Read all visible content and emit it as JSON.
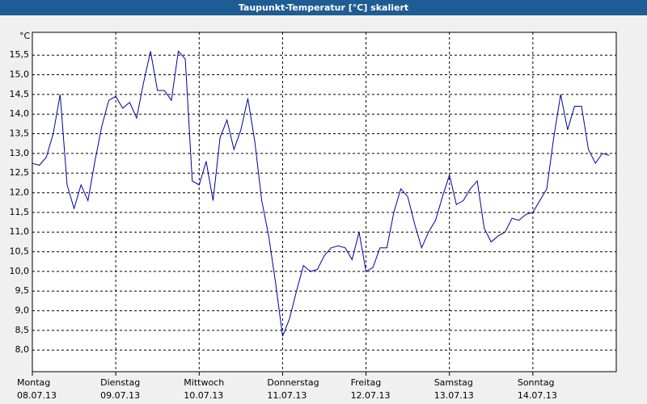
{
  "chart_data": {
    "type": "line",
    "title": "Taupunkt-Temperatur [°C] skaliert",
    "y_unit": "°C",
    "x_labels": [
      {
        "day": "Montag",
        "date": "08.07.13"
      },
      {
        "day": "Dienstag",
        "date": "09.07.13"
      },
      {
        "day": "Mittwoch",
        "date": "10.07.13"
      },
      {
        "day": "Donnerstag",
        "date": "11.07.13"
      },
      {
        "day": "Freitag",
        "date": "12.07.13"
      },
      {
        "day": "Samstag",
        "date": "13.07.13"
      },
      {
        "day": "Sonntag",
        "date": "14.07.13"
      }
    ],
    "series": [
      {
        "color": "#0000a0",
        "values": [
          12.75,
          12.7,
          12.9,
          13.5,
          14.5,
          12.2,
          11.6,
          12.2,
          11.8,
          12.8,
          13.7,
          14.35,
          14.45,
          14.15,
          14.3,
          13.9,
          14.8,
          15.6,
          14.6,
          14.6,
          14.35,
          15.6,
          15.4,
          12.3,
          12.2,
          12.8,
          11.8,
          13.4,
          13.85,
          13.1,
          13.6,
          14.4,
          13.3,
          11.8,
          10.9,
          9.7,
          8.35,
          8.8,
          9.5,
          10.15,
          10.0,
          10.05,
          10.4,
          10.6,
          10.65,
          10.6,
          10.3,
          11.0,
          10.0,
          10.1,
          10.6,
          10.6,
          11.5,
          12.1,
          11.9,
          11.2,
          10.6,
          11.0,
          11.3,
          11.9,
          12.45,
          11.7,
          11.8,
          12.1,
          12.3,
          11.1,
          10.75,
          10.9,
          11.0,
          11.35,
          11.3,
          11.45,
          11.5,
          11.8,
          12.1,
          13.4,
          14.5,
          13.6,
          14.2,
          14.2,
          13.1,
          12.75,
          13.0,
          12.95
        ]
      }
    ],
    "ylim": [
      7.45,
      16.08
    ],
    "yticks": [
      {
        "value": 8.0,
        "label": "8,0"
      },
      {
        "value": 8.5,
        "label": "8,5"
      },
      {
        "value": 9.0,
        "label": "9,0"
      },
      {
        "value": 9.5,
        "label": "9,5"
      },
      {
        "value": 10.0,
        "label": "10,0"
      },
      {
        "value": 10.5,
        "label": "10,5"
      },
      {
        "value": 11.0,
        "label": "11,0"
      },
      {
        "value": 11.5,
        "label": "11,5"
      },
      {
        "value": 12.0,
        "label": "12,0"
      },
      {
        "value": 12.5,
        "label": "12,5"
      },
      {
        "value": 13.0,
        "label": "13,0"
      },
      {
        "value": 13.5,
        "label": "13,5"
      },
      {
        "value": 14.0,
        "label": "14,0"
      },
      {
        "value": 14.5,
        "label": "14,5"
      },
      {
        "value": 15.0,
        "label": "15,0"
      },
      {
        "value": 15.5,
        "label": "15,5"
      }
    ],
    "grid": true
  }
}
